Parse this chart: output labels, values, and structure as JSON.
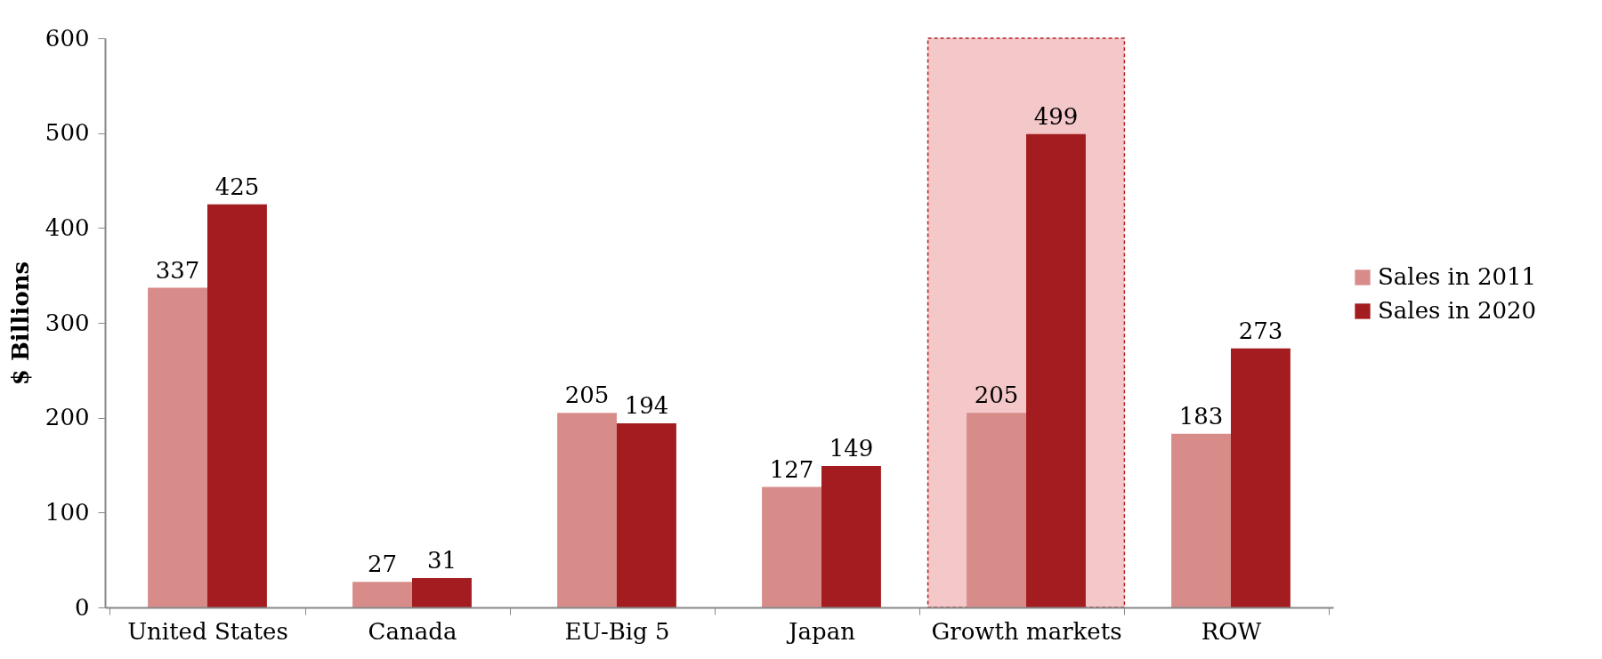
{
  "chart_data": {
    "type": "bar",
    "ylabel": "$ Billions",
    "categories": [
      "United States",
      "Canada",
      "EU-Big 5",
      "Japan",
      "Growth markets",
      "ROW"
    ],
    "series": [
      {
        "name": "Sales in 2011",
        "color": "#d88c8a",
        "values": [
          337,
          27,
          205,
          127,
          205,
          183
        ]
      },
      {
        "name": "Sales in 2020",
        "color": "#a31d20",
        "values": [
          425,
          31,
          194,
          149,
          499,
          273
        ]
      }
    ],
    "ylim": [
      0,
      600
    ],
    "yticks": [
      0,
      100,
      200,
      300,
      400,
      500,
      600
    ],
    "legend": "right",
    "data_labels": true,
    "bands": [
      {
        "axis": "x",
        "from": "Growth markets",
        "to": "Growth markets",
        "color": "#f4c7c9"
      }
    ]
  }
}
